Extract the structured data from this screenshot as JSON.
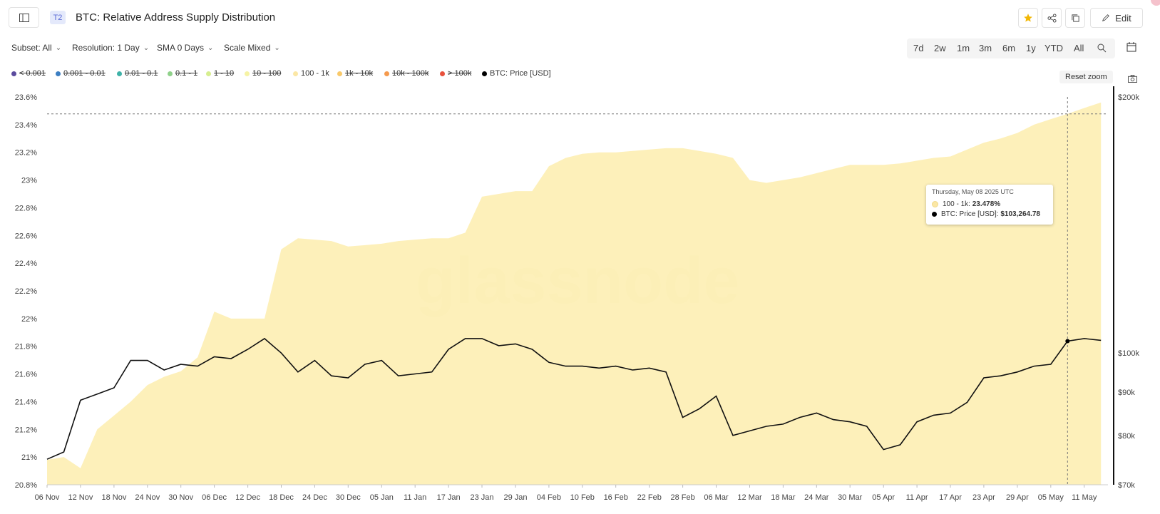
{
  "header": {
    "tag": "T2",
    "title": "BTC: Relative Address Supply Distribution",
    "edit_label": "Edit"
  },
  "controls": {
    "subset": "Subset: All",
    "resolution": "Resolution: 1 Day",
    "sma": "SMA 0 Days",
    "scale": "Scale Mixed"
  },
  "ranges": [
    "7d",
    "2w",
    "1m",
    "3m",
    "6m",
    "1y",
    "YTD",
    "All"
  ],
  "reset_zoom": "Reset zoom",
  "legend": [
    {
      "label": "< 0.001",
      "color": "#5b4b9e",
      "enabled": false
    },
    {
      "label": "0.001 - 0.01",
      "color": "#3c7ec2",
      "enabled": false
    },
    {
      "label": "0.01 - 0.1",
      "color": "#3fb2a8",
      "enabled": false
    },
    {
      "label": "0.1 - 1",
      "color": "#8fd18a",
      "enabled": false
    },
    {
      "label": "1 - 10",
      "color": "#d6ee8f",
      "enabled": false
    },
    {
      "label": "10 - 100",
      "color": "#f6f3a5",
      "enabled": false
    },
    {
      "label": "100 - 1k",
      "color": "#fbe7a5",
      "enabled": true
    },
    {
      "label": "1k - 10k",
      "color": "#f9c96a",
      "enabled": false
    },
    {
      "label": "10k - 100k",
      "color": "#f59a4d",
      "enabled": false
    },
    {
      "label": "> 100k",
      "color": "#e8513c",
      "enabled": false
    },
    {
      "label": "BTC: Price [USD]",
      "color": "#000000",
      "enabled": true
    }
  ],
  "watermark": "glassnode",
  "tooltip": {
    "date": "Thursday, May 08 2025 UTC",
    "series1_label": "100 - 1k",
    "series1_value": "23.478%",
    "series2_label": "BTC: Price [USD]",
    "series2_value": "$103,264.78"
  },
  "chart_data": {
    "type": "area",
    "left_axis": {
      "ticks": [
        "23.6%",
        "23.4%",
        "23.2%",
        "23%",
        "22.8%",
        "22.6%",
        "22.4%",
        "22.2%",
        "22%",
        "21.8%",
        "21.6%",
        "21.4%",
        "21.2%",
        "21%",
        "20.8%"
      ],
      "ylim": [
        20.8,
        23.6
      ]
    },
    "right_axis": {
      "ticks": [
        "$200k",
        "$100k",
        "$90k",
        "$80k",
        "$70k"
      ],
      "scale": "log",
      "ylim": [
        70000,
        200000
      ]
    },
    "x_ticks": [
      "06 Nov",
      "12 Nov",
      "18 Nov",
      "24 Nov",
      "30 Nov",
      "06 Dec",
      "12 Dec",
      "18 Dec",
      "24 Dec",
      "30 Dec",
      "05 Jan",
      "11 Jan",
      "17 Jan",
      "23 Jan",
      "29 Jan",
      "04 Feb",
      "10 Feb",
      "16 Feb",
      "22 Feb",
      "28 Feb",
      "06 Mar",
      "12 Mar",
      "18 Mar",
      "24 Mar",
      "30 Mar",
      "05 Apr",
      "11 Apr",
      "17 Apr",
      "23 Apr",
      "29 Apr",
      "05 May",
      "11 May"
    ],
    "series": [
      {
        "name": "100 - 1k",
        "axis": "left",
        "x": [
          "06 Nov",
          "09 Nov",
          "12 Nov",
          "15 Nov",
          "18 Nov",
          "21 Nov",
          "24 Nov",
          "27 Nov",
          "30 Nov",
          "03 Dec",
          "06 Dec",
          "09 Dec",
          "12 Dec",
          "15 Dec",
          "18 Dec",
          "21 Dec",
          "24 Dec",
          "27 Dec",
          "30 Dec",
          "02 Jan",
          "05 Jan",
          "08 Jan",
          "11 Jan",
          "14 Jan",
          "17 Jan",
          "20 Jan",
          "23 Jan",
          "26 Jan",
          "29 Jan",
          "01 Feb",
          "04 Feb",
          "07 Feb",
          "10 Feb",
          "13 Feb",
          "16 Feb",
          "19 Feb",
          "22 Feb",
          "25 Feb",
          "28 Feb",
          "03 Mar",
          "06 Mar",
          "09 Mar",
          "12 Mar",
          "15 Mar",
          "18 Mar",
          "21 Mar",
          "24 Mar",
          "27 Mar",
          "30 Mar",
          "02 Apr",
          "05 Apr",
          "08 Apr",
          "11 Apr",
          "14 Apr",
          "17 Apr",
          "20 Apr",
          "23 Apr",
          "26 Apr",
          "29 Apr",
          "02 May",
          "05 May",
          "08 May",
          "11 May",
          "14 May"
        ],
        "values": [
          20.98,
          21.0,
          20.92,
          21.2,
          21.3,
          21.4,
          21.52,
          21.58,
          21.62,
          21.72,
          22.05,
          22.0,
          22.0,
          22.0,
          22.5,
          22.58,
          22.57,
          22.56,
          22.52,
          22.53,
          22.54,
          22.56,
          22.57,
          22.58,
          22.58,
          22.62,
          22.88,
          22.9,
          22.92,
          22.92,
          23.1,
          23.16,
          23.19,
          23.2,
          23.2,
          23.21,
          23.22,
          23.23,
          23.23,
          23.21,
          23.19,
          23.16,
          23.0,
          22.98,
          23.0,
          23.02,
          23.05,
          23.08,
          23.11,
          23.11,
          23.11,
          23.12,
          23.14,
          23.16,
          23.17,
          23.22,
          23.27,
          23.3,
          23.34,
          23.4,
          23.44,
          23.478,
          23.52,
          23.56
        ]
      },
      {
        "name": "BTC: Price [USD]",
        "axis": "right",
        "x": [
          "06 Nov",
          "09 Nov",
          "12 Nov",
          "15 Nov",
          "18 Nov",
          "21 Nov",
          "24 Nov",
          "27 Nov",
          "30 Nov",
          "03 Dec",
          "06 Dec",
          "09 Dec",
          "12 Dec",
          "15 Dec",
          "18 Dec",
          "21 Dec",
          "24 Dec",
          "27 Dec",
          "30 Dec",
          "02 Jan",
          "05 Jan",
          "08 Jan",
          "11 Jan",
          "14 Jan",
          "17 Jan",
          "20 Jan",
          "23 Jan",
          "26 Jan",
          "29 Jan",
          "01 Feb",
          "04 Feb",
          "07 Feb",
          "10 Feb",
          "13 Feb",
          "16 Feb",
          "19 Feb",
          "22 Feb",
          "25 Feb",
          "28 Feb",
          "03 Mar",
          "06 Mar",
          "09 Mar",
          "12 Mar",
          "15 Mar",
          "18 Mar",
          "21 Mar",
          "24 Mar",
          "27 Mar",
          "30 Mar",
          "02 Apr",
          "05 Apr",
          "08 Apr",
          "11 Apr",
          "14 Apr",
          "17 Apr",
          "20 Apr",
          "23 Apr",
          "26 Apr",
          "29 Apr",
          "02 May",
          "05 May",
          "08 May",
          "11 May",
          "14 May"
        ],
        "values": [
          75000,
          76500,
          88000,
          89500,
          91000,
          98000,
          98000,
          95500,
          97000,
          96500,
          99000,
          98500,
          101000,
          104000,
          100000,
          95000,
          98000,
          94000,
          93500,
          97000,
          98000,
          94000,
          94500,
          95000,
          101000,
          104000,
          104000,
          102000,
          102500,
          101000,
          97500,
          96500,
          96500,
          96000,
          96500,
          95500,
          96000,
          95000,
          84000,
          86000,
          89000,
          80000,
          81000,
          82000,
          82500,
          84000,
          85000,
          83500,
          83000,
          82000,
          77000,
          78000,
          83000,
          84500,
          85000,
          87500,
          93500,
          94000,
          95000,
          96500,
          97000,
          103264.78,
          104000,
          103500
        ]
      }
    ],
    "crosshair_date": "08 May"
  }
}
